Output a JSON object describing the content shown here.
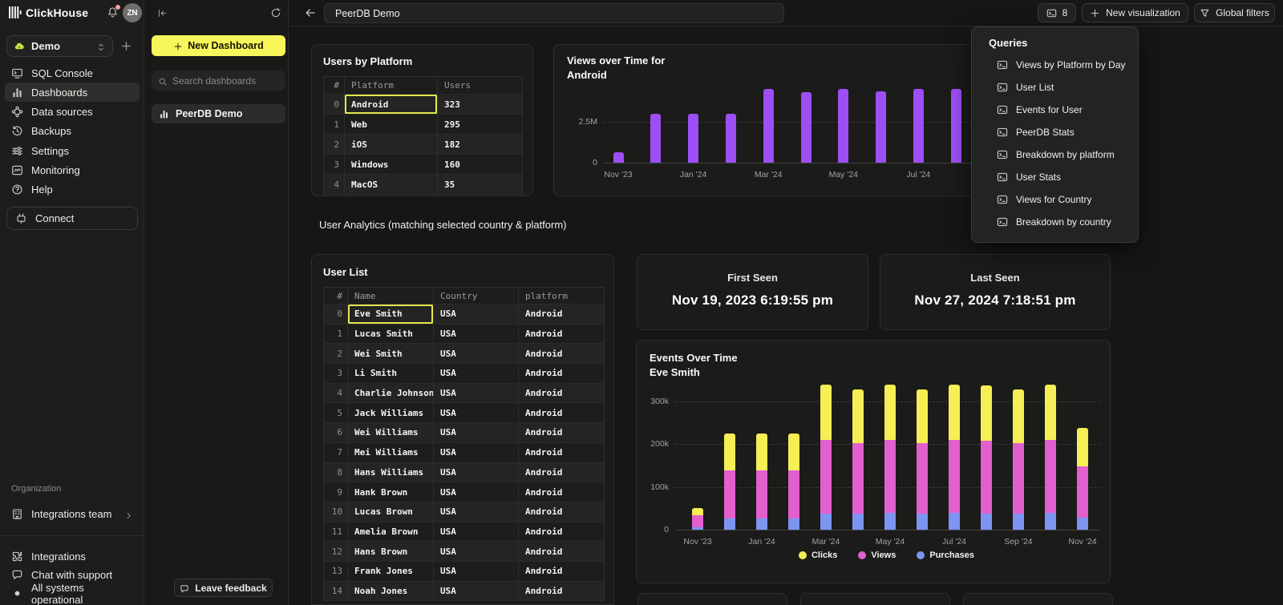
{
  "sidebar": {
    "brand": "ClickHouse",
    "avatar_initials": "ZN",
    "workspace": "Demo",
    "nav_items": [
      {
        "icon": "sql-console",
        "label": "SQL Console",
        "active": false
      },
      {
        "icon": "dashboards",
        "label": "Dashboards",
        "active": true
      },
      {
        "icon": "data-sources",
        "label": "Data sources",
        "active": false
      },
      {
        "icon": "backups",
        "label": "Backups",
        "active": false
      },
      {
        "icon": "settings",
        "label": "Settings",
        "active": false
      },
      {
        "icon": "monitoring",
        "label": "Monitoring",
        "active": false
      },
      {
        "icon": "help",
        "label": "Help",
        "active": false
      }
    ],
    "connect_label": "Connect",
    "organization_label": "Organization",
    "team_label": "Integrations team",
    "footer_items": [
      {
        "icon": "integrations",
        "label": "Integrations"
      },
      {
        "icon": "chat",
        "label": "Chat with support"
      },
      {
        "icon": "status-dot",
        "label": "All systems operational"
      }
    ]
  },
  "dashboards_panel": {
    "new_dashboard_label": "New Dashboard",
    "search_placeholder": "Search dashboards",
    "items": [
      {
        "label": "PeerDB Demo"
      }
    ],
    "feedback_label": "Leave feedback"
  },
  "topbar": {
    "title_value": "PeerDB Demo",
    "queries_count": "8",
    "new_visualization_label": "New visualization",
    "global_filters_label": "Global filters"
  },
  "queries_popup": {
    "title": "Queries",
    "items": [
      "Views by Platform by Day",
      "User List",
      "Events for User",
      "PeerDB Stats",
      "Breakdown by platform",
      "User Stats",
      "Views for Country",
      "Breakdown by country"
    ]
  },
  "note_text": "User Analytics (matching selected country & platform)",
  "tables": {
    "users_by_platform": {
      "title": "Users by Platform",
      "columns": [
        "#",
        "Platform",
        "Users"
      ],
      "rows": [
        [
          "0",
          "Android",
          "323"
        ],
        [
          "1",
          "Web",
          "295"
        ],
        [
          "2",
          "iOS",
          "182"
        ],
        [
          "3",
          "Windows",
          "160"
        ],
        [
          "4",
          "MacOS",
          "35"
        ]
      ],
      "highlight": {
        "row": 0,
        "col": 1
      }
    },
    "user_list": {
      "title": "User List",
      "columns": [
        "#",
        "Name",
        "Country",
        "platform"
      ],
      "rows": [
        [
          "0",
          "Eve Smith",
          "USA",
          "Android"
        ],
        [
          "1",
          "Lucas Smith",
          "USA",
          "Android"
        ],
        [
          "2",
          "Wei Smith",
          "USA",
          "Android"
        ],
        [
          "3",
          "Li Smith",
          "USA",
          "Android"
        ],
        [
          "4",
          "Charlie Johnson",
          "USA",
          "Android"
        ],
        [
          "5",
          "Jack Williams",
          "USA",
          "Android"
        ],
        [
          "6",
          "Wei Williams",
          "USA",
          "Android"
        ],
        [
          "7",
          "Mei Williams",
          "USA",
          "Android"
        ],
        [
          "8",
          "Hans Williams",
          "USA",
          "Android"
        ],
        [
          "9",
          "Hank Brown",
          "USA",
          "Android"
        ],
        [
          "10",
          "Lucas Brown",
          "USA",
          "Android"
        ],
        [
          "11",
          "Amelia Brown",
          "USA",
          "Android"
        ],
        [
          "12",
          "Hans Brown",
          "USA",
          "Android"
        ],
        [
          "13",
          "Frank Jones",
          "USA",
          "Android"
        ],
        [
          "14",
          "Noah Jones",
          "USA",
          "Android"
        ]
      ],
      "highlight": {
        "row": 0,
        "col": 1
      }
    }
  },
  "cards": {
    "first_seen": {
      "title": "First Seen",
      "value": "Nov 19, 2023 6:19:55 pm"
    },
    "last_seen": {
      "title": "Last Seen",
      "value": "Nov 27, 2024 7:18:51 pm"
    }
  },
  "chart_data": [
    {
      "type": "bar",
      "title": "Views over Time for",
      "subtitle": "Android",
      "categories": [
        "Nov '23",
        "Dec '23",
        "Jan '24",
        "Feb '24",
        "Mar '24",
        "Apr '24",
        "May '24",
        "Jun '24",
        "Jul '24",
        "Aug '24"
      ],
      "values": [
        650000,
        3000000,
        3000000,
        3000000,
        4500000,
        4300000,
        4500000,
        4350000,
        4500000,
        4500000
      ],
      "x_tick_labels": [
        "Nov '23",
        "Jan '24",
        "Mar '24",
        "May '24",
        "Jul '24"
      ],
      "y_ticks": [
        {
          "label": "2.5M",
          "value": 2500000
        },
        {
          "label": "0",
          "value": 0
        }
      ],
      "ylim": [
        0,
        5000000
      ],
      "bar_color": "#9d4ef5",
      "grid": "dashed",
      "legend_position": "none"
    },
    {
      "type": "bar",
      "stacked": true,
      "title": "Events Over Time",
      "subtitle": "Eve Smith",
      "categories": [
        "Nov '23",
        "Dec '23",
        "Jan '24",
        "Feb '24",
        "Mar '24",
        "Apr '24",
        "May '24",
        "Jun '24",
        "Jul '24",
        "Aug '24",
        "Sep '24",
        "Oct '24",
        "Nov '24"
      ],
      "series": [
        {
          "name": "Purchases",
          "color": "#7d95f1",
          "values": [
            6000,
            27000,
            26000,
            27000,
            38000,
            37000,
            40000,
            38000,
            40000,
            38000,
            37000,
            40000,
            29000
          ]
        },
        {
          "name": "Views",
          "color": "#e160ce",
          "values": [
            27000,
            112000,
            113000,
            112000,
            172000,
            166000,
            170000,
            165000,
            170000,
            170000,
            166000,
            170000,
            120000
          ]
        },
        {
          "name": "Clicks",
          "color": "#f5ee55",
          "values": [
            17000,
            86000,
            86000,
            86000,
            130000,
            126000,
            130000,
            125000,
            130000,
            130000,
            125000,
            130000,
            90000
          ]
        }
      ],
      "legend": [
        {
          "name": "Clicks",
          "color": "#f5ee55"
        },
        {
          "name": "Views",
          "color": "#e160ce"
        },
        {
          "name": "Purchases",
          "color": "#7d95f1"
        }
      ],
      "x_tick_labels": [
        "Nov '23",
        "Jan '24",
        "Mar '24",
        "May '24",
        "Jul '24",
        "Sep '24",
        "Nov '24"
      ],
      "y_ticks": [
        {
          "label": "300k",
          "value": 300000
        },
        {
          "label": "200k",
          "value": 200000
        },
        {
          "label": "100k",
          "value": 100000
        },
        {
          "label": "0",
          "value": 0
        }
      ],
      "ylim": [
        0,
        360000
      ],
      "grid": "dashed",
      "legend_position": "bottom"
    }
  ],
  "colors": {
    "accent_yellow": "#f7f75c",
    "highlight_border": "#e5e551",
    "purple": "#9d4ef5",
    "pink": "#e160ce",
    "blue": "#7d95f1",
    "chart_yellow": "#f5ee55",
    "notification_dot": "#f0a79e"
  }
}
